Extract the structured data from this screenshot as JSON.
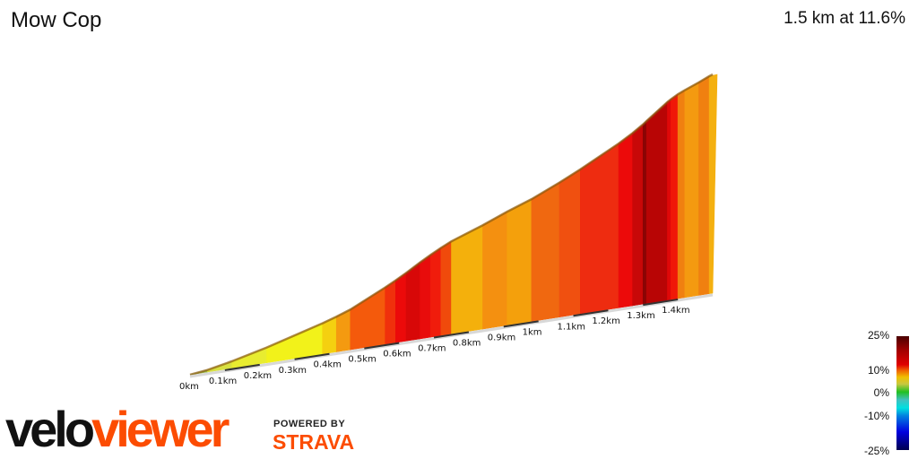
{
  "header": {
    "title": "Mow Cop",
    "summary": "1.5 km at 11.6%"
  },
  "chart_data": {
    "type": "area",
    "title": "Mow Cop",
    "distance_km": 1.5,
    "average_grade_pct": 11.6,
    "x_ticks": [
      "0km",
      "0.1km",
      "0.2km",
      "0.3km",
      "0.4km",
      "0.5km",
      "0.6km",
      "0.7km",
      "0.8km",
      "0.9km",
      "1km",
      "1.1km",
      "1.2km",
      "1.3km",
      "1.4km"
    ],
    "segments": [
      {
        "start": 0,
        "end": 0.05,
        "grade": 3,
        "color": "#9cbb4a"
      },
      {
        "start": 0.05,
        "end": 0.12,
        "grade": 5,
        "color": "#d8e040"
      },
      {
        "start": 0.12,
        "end": 0.22,
        "grade": 6,
        "color": "#e8ec30"
      },
      {
        "start": 0.22,
        "end": 0.38,
        "grade": 7,
        "color": "#f2f21a"
      },
      {
        "start": 0.38,
        "end": 0.42,
        "grade": 8,
        "color": "#f4d010"
      },
      {
        "start": 0.42,
        "end": 0.46,
        "grade": 9,
        "color": "#f49a10"
      },
      {
        "start": 0.46,
        "end": 0.56,
        "grade": 12,
        "color": "#f45a0c"
      },
      {
        "start": 0.56,
        "end": 0.59,
        "grade": 13,
        "color": "#f0300c"
      },
      {
        "start": 0.59,
        "end": 0.62,
        "grade": 14,
        "color": "#ec0a0a"
      },
      {
        "start": 0.62,
        "end": 0.66,
        "grade": 15,
        "color": "#d80808"
      },
      {
        "start": 0.66,
        "end": 0.69,
        "grade": 14,
        "color": "#e80c0c"
      },
      {
        "start": 0.69,
        "end": 0.72,
        "grade": 13,
        "color": "#f01c0c"
      },
      {
        "start": 0.72,
        "end": 0.75,
        "grade": 12,
        "color": "#f04a0c"
      },
      {
        "start": 0.75,
        "end": 0.84,
        "grade": 9,
        "color": "#f4b00c"
      },
      {
        "start": 0.84,
        "end": 0.91,
        "grade": 10,
        "color": "#f49010"
      },
      {
        "start": 0.91,
        "end": 0.98,
        "grade": 9,
        "color": "#f4a00c"
      },
      {
        "start": 0.98,
        "end": 1.06,
        "grade": 11,
        "color": "#f06810"
      },
      {
        "start": 1.06,
        "end": 1.12,
        "grade": 12,
        "color": "#f05010"
      },
      {
        "start": 1.12,
        "end": 1.23,
        "grade": 13,
        "color": "#ee2c10"
      },
      {
        "start": 1.23,
        "end": 1.27,
        "grade": 15,
        "color": "#ec0a0a"
      },
      {
        "start": 1.27,
        "end": 1.3,
        "grade": 17,
        "color": "#c80808"
      },
      {
        "start": 1.3,
        "end": 1.31,
        "grade": 20,
        "color": "#8a0505"
      },
      {
        "start": 1.31,
        "end": 1.37,
        "grade": 19,
        "color": "#b80505"
      },
      {
        "start": 1.37,
        "end": 1.38,
        "grade": 16,
        "color": "#e00808"
      },
      {
        "start": 1.38,
        "end": 1.4,
        "grade": 14,
        "color": "#f01808"
      },
      {
        "start": 1.4,
        "end": 1.42,
        "grade": 11,
        "color": "#f08010"
      },
      {
        "start": 1.42,
        "end": 1.46,
        "grade": 10,
        "color": "#f49a10"
      },
      {
        "start": 1.46,
        "end": 1.49,
        "grade": 11,
        "color": "#f08010"
      },
      {
        "start": 1.49,
        "end": 1.5,
        "grade": 9,
        "color": "#f4b010"
      }
    ],
    "legend": {
      "labels": [
        "25%",
        "10%",
        "0%",
        "-10%",
        "-25%"
      ],
      "range": [
        -25,
        25
      ]
    }
  },
  "branding": {
    "logo": "veloviewer",
    "powered_by": "POWERED BY",
    "strava": "STRAVA"
  }
}
